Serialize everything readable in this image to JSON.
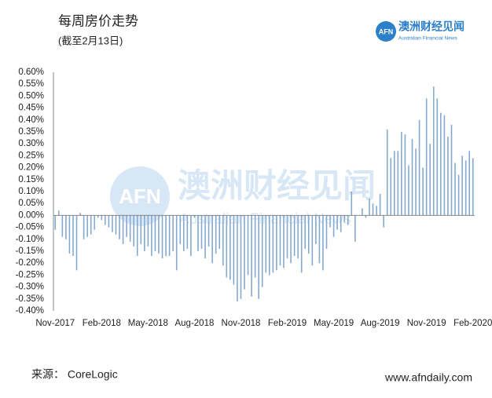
{
  "chart_data": {
    "type": "bar",
    "title": "每周房价走势",
    "subtitle": "(截至2月13日)",
    "categories": [
      "Nov-2017",
      null,
      null,
      null,
      null,
      null,
      null,
      null,
      null,
      null,
      null,
      null,
      null,
      "Feb-2018",
      null,
      null,
      null,
      null,
      null,
      null,
      null,
      null,
      null,
      null,
      null,
      null,
      "May-2018",
      null,
      null,
      null,
      null,
      null,
      null,
      null,
      null,
      null,
      null,
      null,
      null,
      "Aug-2018",
      null,
      null,
      null,
      null,
      null,
      null,
      null,
      null,
      null,
      null,
      null,
      null,
      "Nov-2018",
      null,
      null,
      null,
      null,
      null,
      null,
      null,
      null,
      null,
      null,
      null,
      null,
      "Feb-2019",
      null,
      null,
      null,
      null,
      null,
      null,
      null,
      null,
      null,
      null,
      null,
      null,
      "May-2019",
      null,
      null,
      null,
      null,
      null,
      null,
      null,
      null,
      null,
      null,
      null,
      null,
      "Aug-2019",
      null,
      null,
      null,
      null,
      null,
      null,
      null,
      null,
      null,
      null,
      null,
      null,
      "Nov-2019",
      null,
      null,
      null,
      null,
      null,
      null,
      null,
      null,
      null,
      null,
      null,
      null,
      "Feb-2020"
    ],
    "values": [
      -0.06,
      0.02,
      -0.09,
      -0.1,
      -0.16,
      -0.17,
      -0.23,
      0.01,
      -0.1,
      -0.09,
      -0.08,
      -0.06,
      -0.01,
      -0.02,
      -0.04,
      -0.05,
      -0.07,
      -0.08,
      -0.1,
      -0.12,
      -0.09,
      -0.11,
      -0.13,
      -0.17,
      -0.12,
      -0.15,
      -0.13,
      -0.17,
      -0.15,
      -0.16,
      -0.18,
      -0.17,
      -0.17,
      -0.15,
      -0.23,
      -0.12,
      -0.15,
      -0.14,
      -0.17,
      -0.01,
      -0.15,
      -0.14,
      -0.18,
      -0.13,
      -0.2,
      -0.16,
      -0.14,
      -0.21,
      -0.26,
      -0.27,
      -0.29,
      -0.36,
      -0.35,
      -0.31,
      -0.25,
      -0.34,
      -0.26,
      -0.35,
      -0.3,
      -0.24,
      -0.25,
      -0.24,
      -0.23,
      -0.21,
      -0.22,
      -0.18,
      -0.2,
      -0.17,
      -0.18,
      -0.24,
      -0.14,
      -0.16,
      -0.21,
      -0.12,
      -0.2,
      -0.23,
      -0.14,
      -0.05,
      -0.09,
      -0.06,
      -0.07,
      -0.03,
      -0.04,
      0.1,
      -0.11,
      0,
      0.03,
      -0.01,
      0.07,
      0.05,
      0.04,
      0.09,
      -0.05,
      0.36,
      0.24,
      0.27,
      0.27,
      0.35,
      0.34,
      0.21,
      0.32,
      0.28,
      0.4,
      0.2,
      0.49,
      0.3,
      0.54,
      0.49,
      0.43,
      0.42,
      0.33,
      0.38,
      0.22,
      0.17,
      0.25,
      0.23,
      0.27,
      0.24
    ],
    "color": "#85a9cf",
    "ylim": [
      -0.4,
      0.6
    ],
    "yticks": [
      {
        "value": 0.6,
        "label": "0.60%"
      },
      {
        "value": 0.55,
        "label": "0.55%"
      },
      {
        "value": 0.5,
        "label": "0.50%"
      },
      {
        "value": 0.45,
        "label": "0.45%"
      },
      {
        "value": 0.4,
        "label": "0.40%"
      },
      {
        "value": 0.35,
        "label": "0.35%"
      },
      {
        "value": 0.3,
        "label": "0.30%"
      },
      {
        "value": 0.25,
        "label": "0.25%"
      },
      {
        "value": 0.2,
        "label": "0.20%"
      },
      {
        "value": 0.15,
        "label": "0.15%"
      },
      {
        "value": 0.1,
        "label": "0.10%"
      },
      {
        "value": 0.05,
        "label": "0.05%"
      },
      {
        "value": 0,
        "label": "0.00%"
      },
      {
        "value": -0.05,
        "label": "-0.05%"
      },
      {
        "value": -0.1,
        "label": "-0.10%"
      },
      {
        "value": -0.15,
        "label": "-0.15%"
      },
      {
        "value": -0.2,
        "label": "-0.20%"
      },
      {
        "value": -0.25,
        "label": "-0.25%"
      },
      {
        "value": -0.3,
        "label": "-0.30%"
      },
      {
        "value": -0.35,
        "label": "-0.35%"
      },
      {
        "value": -0.4,
        "label": "-0.40%"
      }
    ],
    "grid": false
  },
  "logo": {
    "mark": "AFN",
    "name": "澳洲财经见闻",
    "english": "Australian Financial News"
  },
  "source": "来源： CoreLogic",
  "website": "www.afndaily.com"
}
